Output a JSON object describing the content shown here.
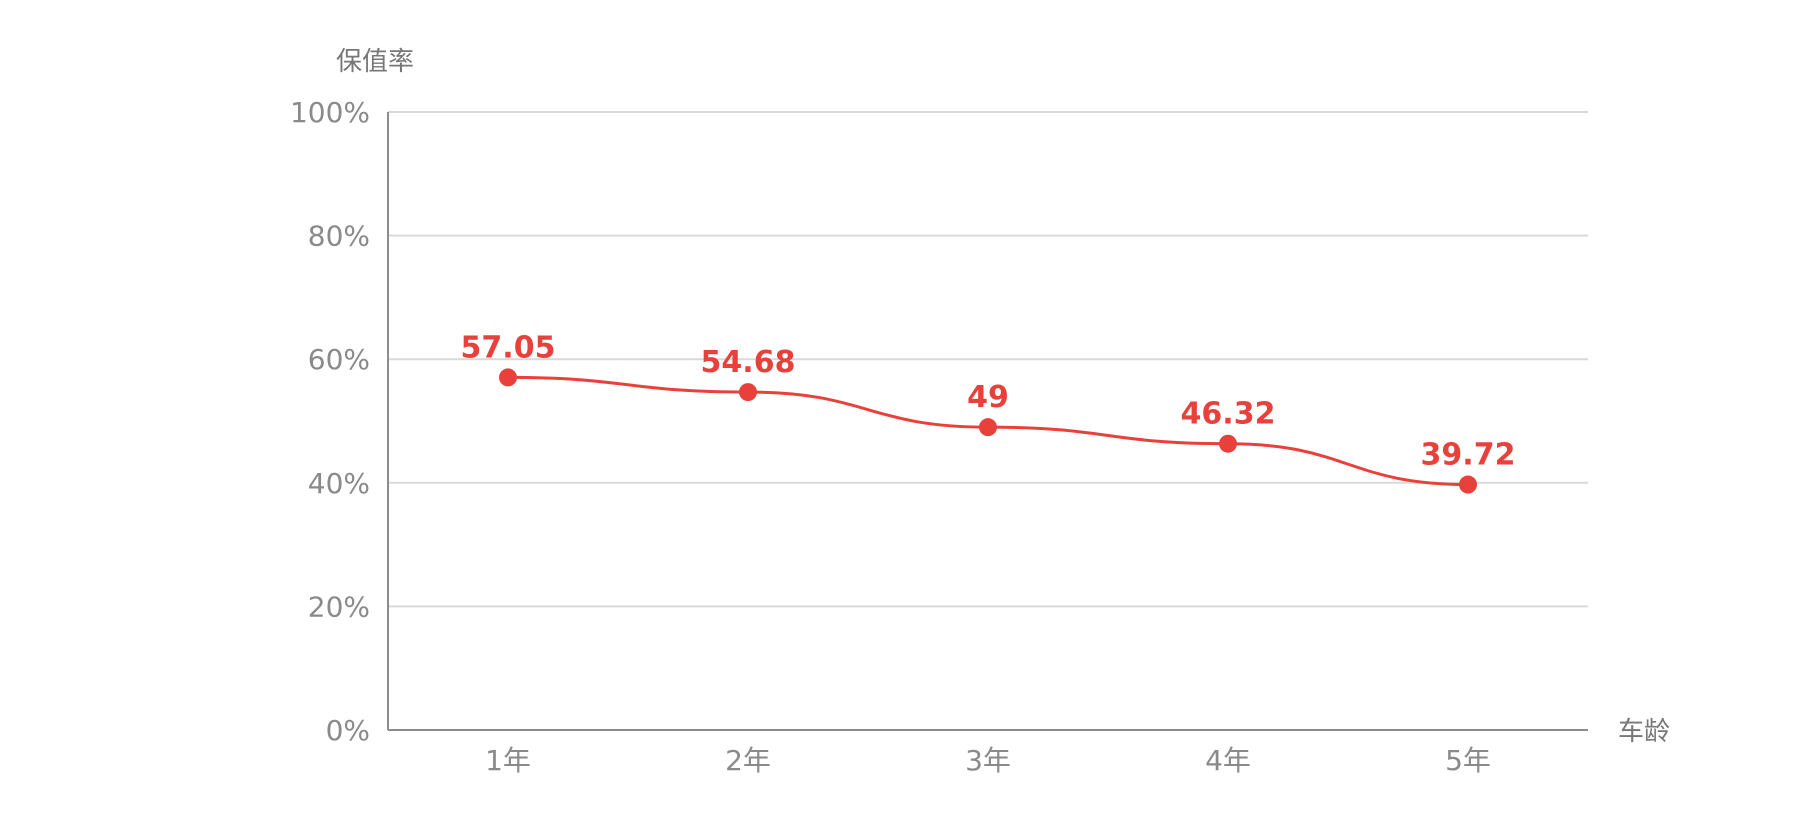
{
  "colors": {
    "series": "#e8413c",
    "text": "#8a8a8a",
    "grid": "#d9d9d9",
    "axis": "#8c8c8c"
  },
  "chart_data": {
    "type": "line",
    "title": "",
    "xlabel": "车龄",
    "ylabel": "保值率",
    "categories": [
      "1年",
      "2年",
      "3年",
      "4年",
      "5年"
    ],
    "series": [
      {
        "values": [
          57.05,
          54.68,
          49,
          46.32,
          39.72
        ]
      }
    ],
    "data_labels": [
      "57.05",
      "54.68",
      "49",
      "46.32",
      "39.72"
    ],
    "y_ticks": [
      "0%",
      "20%",
      "40%",
      "60%",
      "80%",
      "100%"
    ],
    "ylim": [
      0,
      100
    ],
    "grid": "horizontal",
    "legend": "none"
  }
}
